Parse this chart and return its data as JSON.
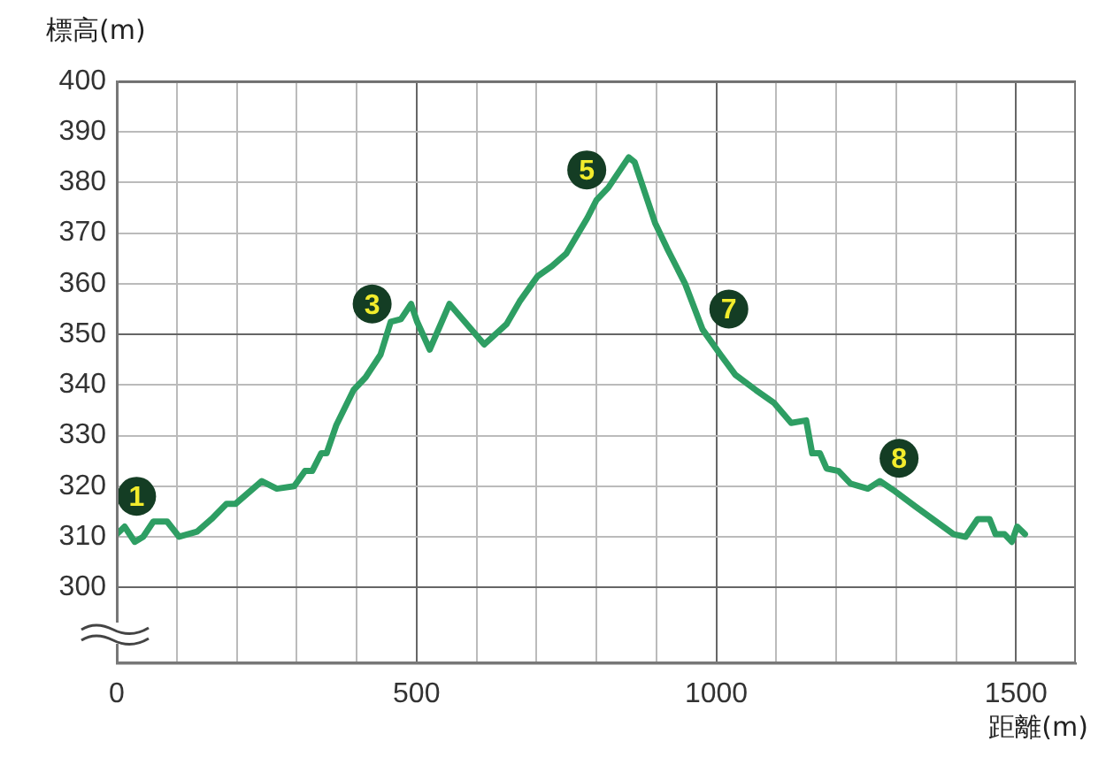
{
  "chart_data": {
    "type": "line",
    "xlabel": "距離(m)",
    "ylabel": "標高(m)",
    "xlim": [
      0,
      1600
    ],
    "ylim": [
      285,
      400
    ],
    "xticks": [
      0,
      {
        "value": 100,
        "label": null
      },
      {
        "value": 200,
        "label": null
      },
      {
        "value": 300,
        "label": null
      },
      {
        "value": 400,
        "label": null
      },
      500,
      {
        "value": 600,
        "label": null
      },
      {
        "value": 700,
        "label": null
      },
      {
        "value": 800,
        "label": null
      },
      {
        "value": 900,
        "label": null
      },
      1000,
      {
        "value": 1100,
        "label": null
      },
      {
        "value": 1200,
        "label": null
      },
      {
        "value": 1300,
        "label": null
      },
      {
        "value": 1400,
        "label": null
      },
      1500
    ],
    "yticks": [
      300,
      310,
      320,
      330,
      340,
      350,
      360,
      370,
      380,
      390,
      400
    ],
    "grid": true,
    "legend": false,
    "marker": "none",
    "line_style": "solid",
    "series": [
      {
        "color": "#2e9e63",
        "x": [
          0,
          13,
          30,
          44,
          61,
          84,
          104,
          134,
          158,
          183,
          198,
          242,
          267,
          296,
          314,
          326,
          341,
          350,
          366,
          395,
          415,
          440,
          457,
          474,
          491,
          501,
          522,
          555,
          613,
          650,
          672,
          702,
          726,
          750,
          785,
          800,
          820,
          854,
          864,
          898,
          918,
          948,
          977,
          1007,
          1032,
          1066,
          1096,
          1125,
          1150,
          1160,
          1173,
          1184,
          1204,
          1224,
          1253,
          1273,
          1298,
          1332,
          1396,
          1416,
          1436,
          1456,
          1466,
          1481,
          1493,
          1502,
          1515
        ],
        "values": [
          310.5,
          312,
          309,
          310,
          313,
          313,
          310,
          311,
          313.5,
          316.5,
          316.5,
          321,
          319.5,
          320,
          323,
          323,
          326.5,
          326.5,
          332,
          339,
          341.5,
          346,
          352.5,
          353,
          356,
          352.5,
          347,
          356,
          348,
          352,
          356.5,
          361.5,
          363.5,
          366,
          373,
          376.5,
          379,
          385,
          384,
          372,
          367,
          360,
          351,
          346,
          342,
          339,
          336.5,
          332.5,
          333,
          326.5,
          326.5,
          323.5,
          323,
          320.5,
          319.5,
          321,
          319,
          316,
          310.5,
          310,
          313.5,
          313.5,
          310.5,
          310.5,
          309,
          312,
          310.5
        ]
      }
    ],
    "annotations": [
      {
        "text": "1",
        "x": 33,
        "y": 318
      },
      {
        "text": "3",
        "x": 426,
        "y": 356
      },
      {
        "text": "5",
        "x": 784,
        "y": 382.5
      },
      {
        "text": "7",
        "x": 1021,
        "y": 355
      },
      {
        "text": "8",
        "x": 1305,
        "y": 325.5
      }
    ]
  }
}
